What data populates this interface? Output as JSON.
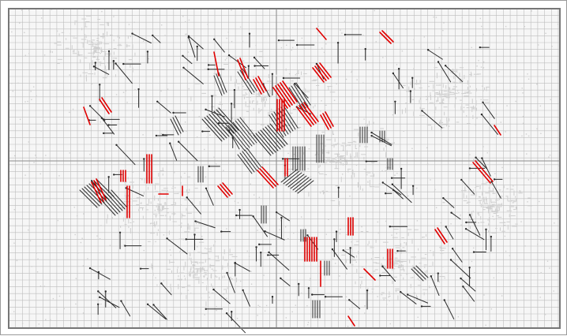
{
  "map": {
    "colors": {
      "background": "#f6f6f6",
      "grid": "#bdbdbd",
      "grid_major": "#8c8c8c",
      "street": "#cfcfcf",
      "route_black": "#2b2b2b",
      "route_red": "#e00000",
      "border": "#777777"
    },
    "layers": [
      "street-grid",
      "routes-black",
      "routes-red"
    ]
  }
}
